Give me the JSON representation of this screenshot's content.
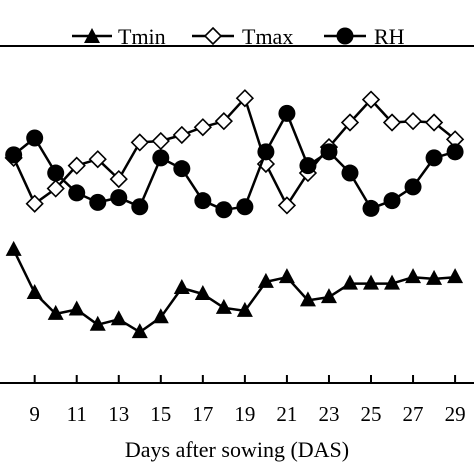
{
  "chart_data": {
    "type": "line",
    "xlabel": "Days after sowing (DAS)",
    "ylabel": "",
    "xlim": [
      7.35,
      29.9
    ],
    "ylim": [
      0,
      100
    ],
    "x_ticks": [
      9,
      11,
      13,
      15,
      17,
      19,
      21,
      23,
      25,
      27,
      29
    ],
    "x_tick_labels": [
      "9",
      "11",
      "13",
      "15",
      "17",
      "19",
      "21",
      "23",
      "25",
      "27",
      "29"
    ],
    "grid": false,
    "legend": {
      "placement": "top",
      "entries": [
        "Tmin",
        "Tmax",
        "RH"
      ]
    },
    "series": [
      {
        "name": "Tmin",
        "marker": "triangle",
        "color": "#000000",
        "x": [
          8,
          9,
          10,
          11,
          12,
          13,
          14,
          15,
          16,
          17,
          18,
          19,
          20,
          21,
          22,
          23,
          24,
          25,
          26,
          27,
          28,
          29
        ],
        "y": [
          39.5,
          26.7,
          20.5,
          21.8,
          17.3,
          18.9,
          15.1,
          19.5,
          28.2,
          26.4,
          22.3,
          21.4,
          30.0,
          31.4,
          24.5,
          25.5,
          29.5,
          29.5,
          29.5,
          31.4,
          30.9,
          31.4
        ]
      },
      {
        "name": "Tmax",
        "marker": "diamond-open",
        "color": "#000000",
        "x": [
          8,
          9,
          10,
          11,
          12,
          13,
          14,
          15,
          16,
          17,
          18,
          19,
          20,
          21,
          22,
          23,
          24,
          25,
          26,
          27,
          28,
          29
        ],
        "y": [
          66.8,
          53.2,
          57.7,
          64.5,
          66.4,
          60.5,
          71.4,
          71.8,
          73.6,
          75.9,
          77.7,
          84.5,
          65.0,
          52.7,
          62.3,
          70.0,
          77.3,
          84.1,
          77.3,
          77.7,
          77.3,
          72.3
        ]
      },
      {
        "name": "RH",
        "marker": "circle-filled",
        "color": "#000000",
        "x": [
          8,
          9,
          10,
          11,
          12,
          13,
          14,
          15,
          16,
          17,
          18,
          19,
          20,
          21,
          22,
          23,
          24,
          25,
          26,
          27,
          28,
          29
        ],
        "y": [
          67.7,
          72.7,
          62.3,
          56.4,
          53.6,
          55.0,
          52.3,
          66.8,
          63.6,
          54.1,
          51.4,
          52.3,
          68.6,
          80.0,
          64.5,
          68.6,
          62.3,
          51.8,
          54.1,
          58.2,
          66.8,
          68.6
        ]
      }
    ]
  }
}
